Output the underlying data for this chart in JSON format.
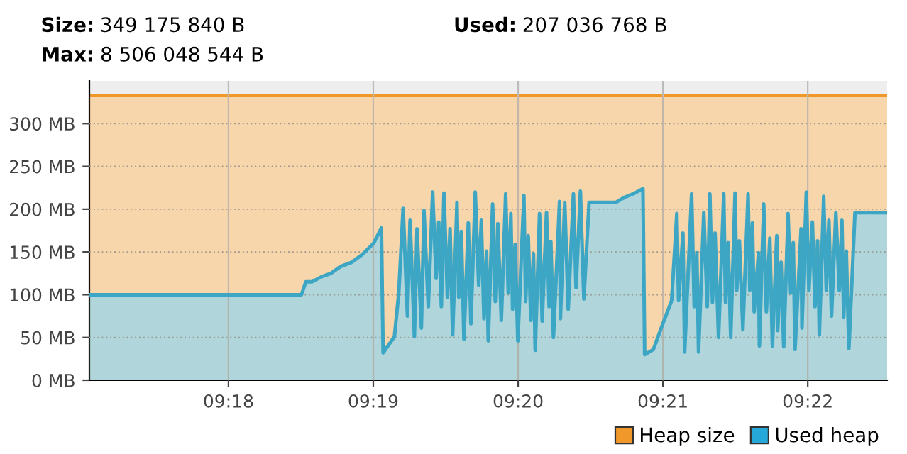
{
  "chart_data": {
    "type": "area",
    "annotations": [
      "Size: 349 175 840 B",
      "Used: 207 036 768 B",
      "Max: 8 506 048 544 B"
    ],
    "xlim": [
      9.284,
      9.3758
    ],
    "xticks": [
      {
        "value": 9.3,
        "label": "09:18"
      },
      {
        "value": 9.316667,
        "label": "09:19"
      },
      {
        "value": 9.333333,
        "label": "09:20"
      },
      {
        "value": 9.35,
        "label": "09:21"
      },
      {
        "value": 9.366667,
        "label": "09:22"
      }
    ],
    "ylim": [
      0,
      350
    ],
    "yticks": [
      {
        "value": 0,
        "label": "0 MB"
      },
      {
        "value": 50,
        "label": "50 MB"
      },
      {
        "value": 100,
        "label": "100 MB"
      },
      {
        "value": 150,
        "label": "150 MB"
      },
      {
        "value": 200,
        "label": "200 MB"
      },
      {
        "value": 250,
        "label": "250 MB"
      },
      {
        "value": 300,
        "label": "300 MB"
      }
    ],
    "grid": true,
    "legend": "bottom right",
    "series": [
      {
        "name": "Heap size",
        "color": "#f0982a",
        "x": [
          9.284,
          9.3,
          9.3167,
          9.3333,
          9.35,
          9.3667,
          9.3758
        ],
        "values": [
          333,
          333,
          333,
          333,
          333,
          333,
          333
        ]
      },
      {
        "name": "Used heap",
        "color": "#26a9d9",
        "x": [
          9.284,
          9.3084,
          9.3089,
          9.3096,
          9.3107,
          9.3118,
          9.3129,
          9.3142,
          9.3154,
          9.3167,
          9.3176,
          9.3178,
          9.3191,
          9.3196,
          9.3201,
          9.3206,
          9.3209,
          9.3214,
          9.3217,
          9.3222,
          9.3225,
          9.323,
          9.3235,
          9.3239,
          9.3242,
          9.3245,
          9.3248,
          9.3252,
          9.3255,
          9.3258,
          9.3263,
          9.3265,
          9.3268,
          9.3271,
          9.3276,
          9.3279,
          9.3284,
          9.3288,
          9.3291,
          9.3294,
          9.3297,
          9.3299,
          9.3304,
          9.3307,
          9.331,
          9.3314,
          9.3319,
          9.3322,
          9.3325,
          9.3327,
          9.333,
          9.3333,
          9.334,
          9.3342,
          9.3345,
          9.3348,
          9.3351,
          9.3353,
          9.3358,
          9.3361,
          9.3366,
          9.3369,
          9.3371,
          9.3374,
          9.3381,
          9.3382,
          9.3387,
          9.3391,
          9.3397,
          9.34,
          9.3405,
          9.3409,
          9.3415,
          9.3446,
          9.3456,
          9.3466,
          9.3477,
          9.3479,
          9.3489,
          9.3498,
          9.351,
          9.3516,
          9.3518,
          9.3523,
          9.3525,
          9.3533,
          9.3536,
          9.3539,
          9.3541,
          9.3547,
          9.3551,
          9.3554,
          9.3557,
          9.356,
          9.3564,
          9.357,
          9.3572,
          9.3575,
          9.3578,
          9.3583,
          9.3585,
          9.3588,
          9.3592,
          9.3598,
          9.36,
          9.3603,
          9.3605,
          9.361,
          9.3611,
          9.3616,
          9.3619,
          9.3623,
          9.3626,
          9.3631,
          9.3632,
          9.3636,
          9.3639,
          9.3644,
          9.3647,
          9.365,
          9.3652,
          9.3659,
          9.366,
          9.3665,
          9.3668,
          9.3672,
          9.3675,
          9.3678,
          9.368,
          9.3685,
          9.3688,
          9.3691,
          9.3694,
          9.3699,
          9.3703,
          9.3706,
          9.3708,
          9.3711,
          9.3714,
          9.3721,
          9.3758
        ],
        "values": [
          100,
          100,
          115,
          115,
          121,
          125,
          133,
          138,
          147,
          160,
          178,
          32,
          51,
          102,
          201,
          75,
          187,
          51,
          177,
          61,
          198,
          86,
          220,
          119,
          185,
          86,
          219,
          97,
          177,
          53,
          208,
          97,
          174,
          48,
          184,
          66,
          220,
          111,
          187,
          72,
          151,
          46,
          206,
          92,
          183,
          70,
          218,
          102,
          195,
          83,
          159,
          46,
          216,
          92,
          169,
          70,
          148,
          35,
          195,
          69,
          196,
          86,
          162,
          50,
          209,
          72,
          208,
          83,
          218,
          108,
          221,
          95,
          208,
          208,
          214,
          218,
          224,
          30,
          36,
          61,
          93,
          195,
          93,
          172,
          33,
          218,
          86,
          149,
          33,
          196,
          86,
          218,
          91,
          172,
          50,
          218,
          91,
          161,
          50,
          219,
          105,
          163,
          59,
          218,
          105,
          184,
          80,
          149,
          40,
          206,
          80,
          166,
          40,
          169,
          58,
          138,
          39,
          195,
          102,
          161,
          36,
          177,
          61,
          220,
          105,
          185,
          86,
          163,
          53,
          215,
          105,
          187,
          75,
          196,
          105,
          187,
          74,
          151,
          37,
          196,
          196
        ]
      }
    ]
  }
}
